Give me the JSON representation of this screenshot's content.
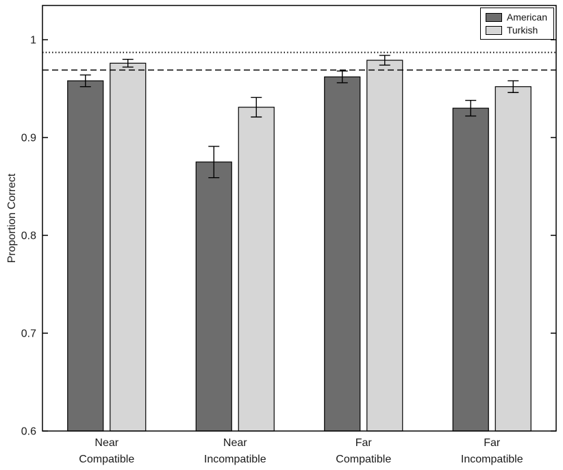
{
  "chart_data": {
    "type": "bar",
    "title": "",
    "xlabel": "",
    "ylabel": "Proportion Correct",
    "categories": [
      [
        "Near",
        "Compatible"
      ],
      [
        "Near",
        "Incompatible"
      ],
      [
        "Far",
        "Compatible"
      ],
      [
        "Far",
        "Incompatible"
      ]
    ],
    "series": [
      {
        "name": "American",
        "color": "#6d6d6d",
        "values": [
          0.958,
          0.875,
          0.962,
          0.93
        ],
        "errors": [
          0.006,
          0.016,
          0.006,
          0.008
        ]
      },
      {
        "name": "Turkish",
        "color": "#d6d6d6",
        "values": [
          0.976,
          0.931,
          0.979,
          0.952
        ],
        "errors": [
          0.004,
          0.01,
          0.005,
          0.006
        ]
      }
    ],
    "ylim": [
      0.6,
      1.035
    ],
    "yticks": [
      0.6,
      0.7,
      0.8,
      0.9,
      1
    ],
    "ytick_labels": [
      "0.6",
      "0.7",
      "0.8",
      "0.9",
      "1"
    ],
    "reference_lines": [
      {
        "style": "dotted",
        "value": 0.987
      },
      {
        "style": "dashed",
        "value": 0.969
      }
    ],
    "legend_position": "top-right",
    "grid": false,
    "colors": {
      "axis": "#000000",
      "bar_edge": "#000000",
      "reference_line": "#000000",
      "error_bar": "#000000"
    }
  }
}
